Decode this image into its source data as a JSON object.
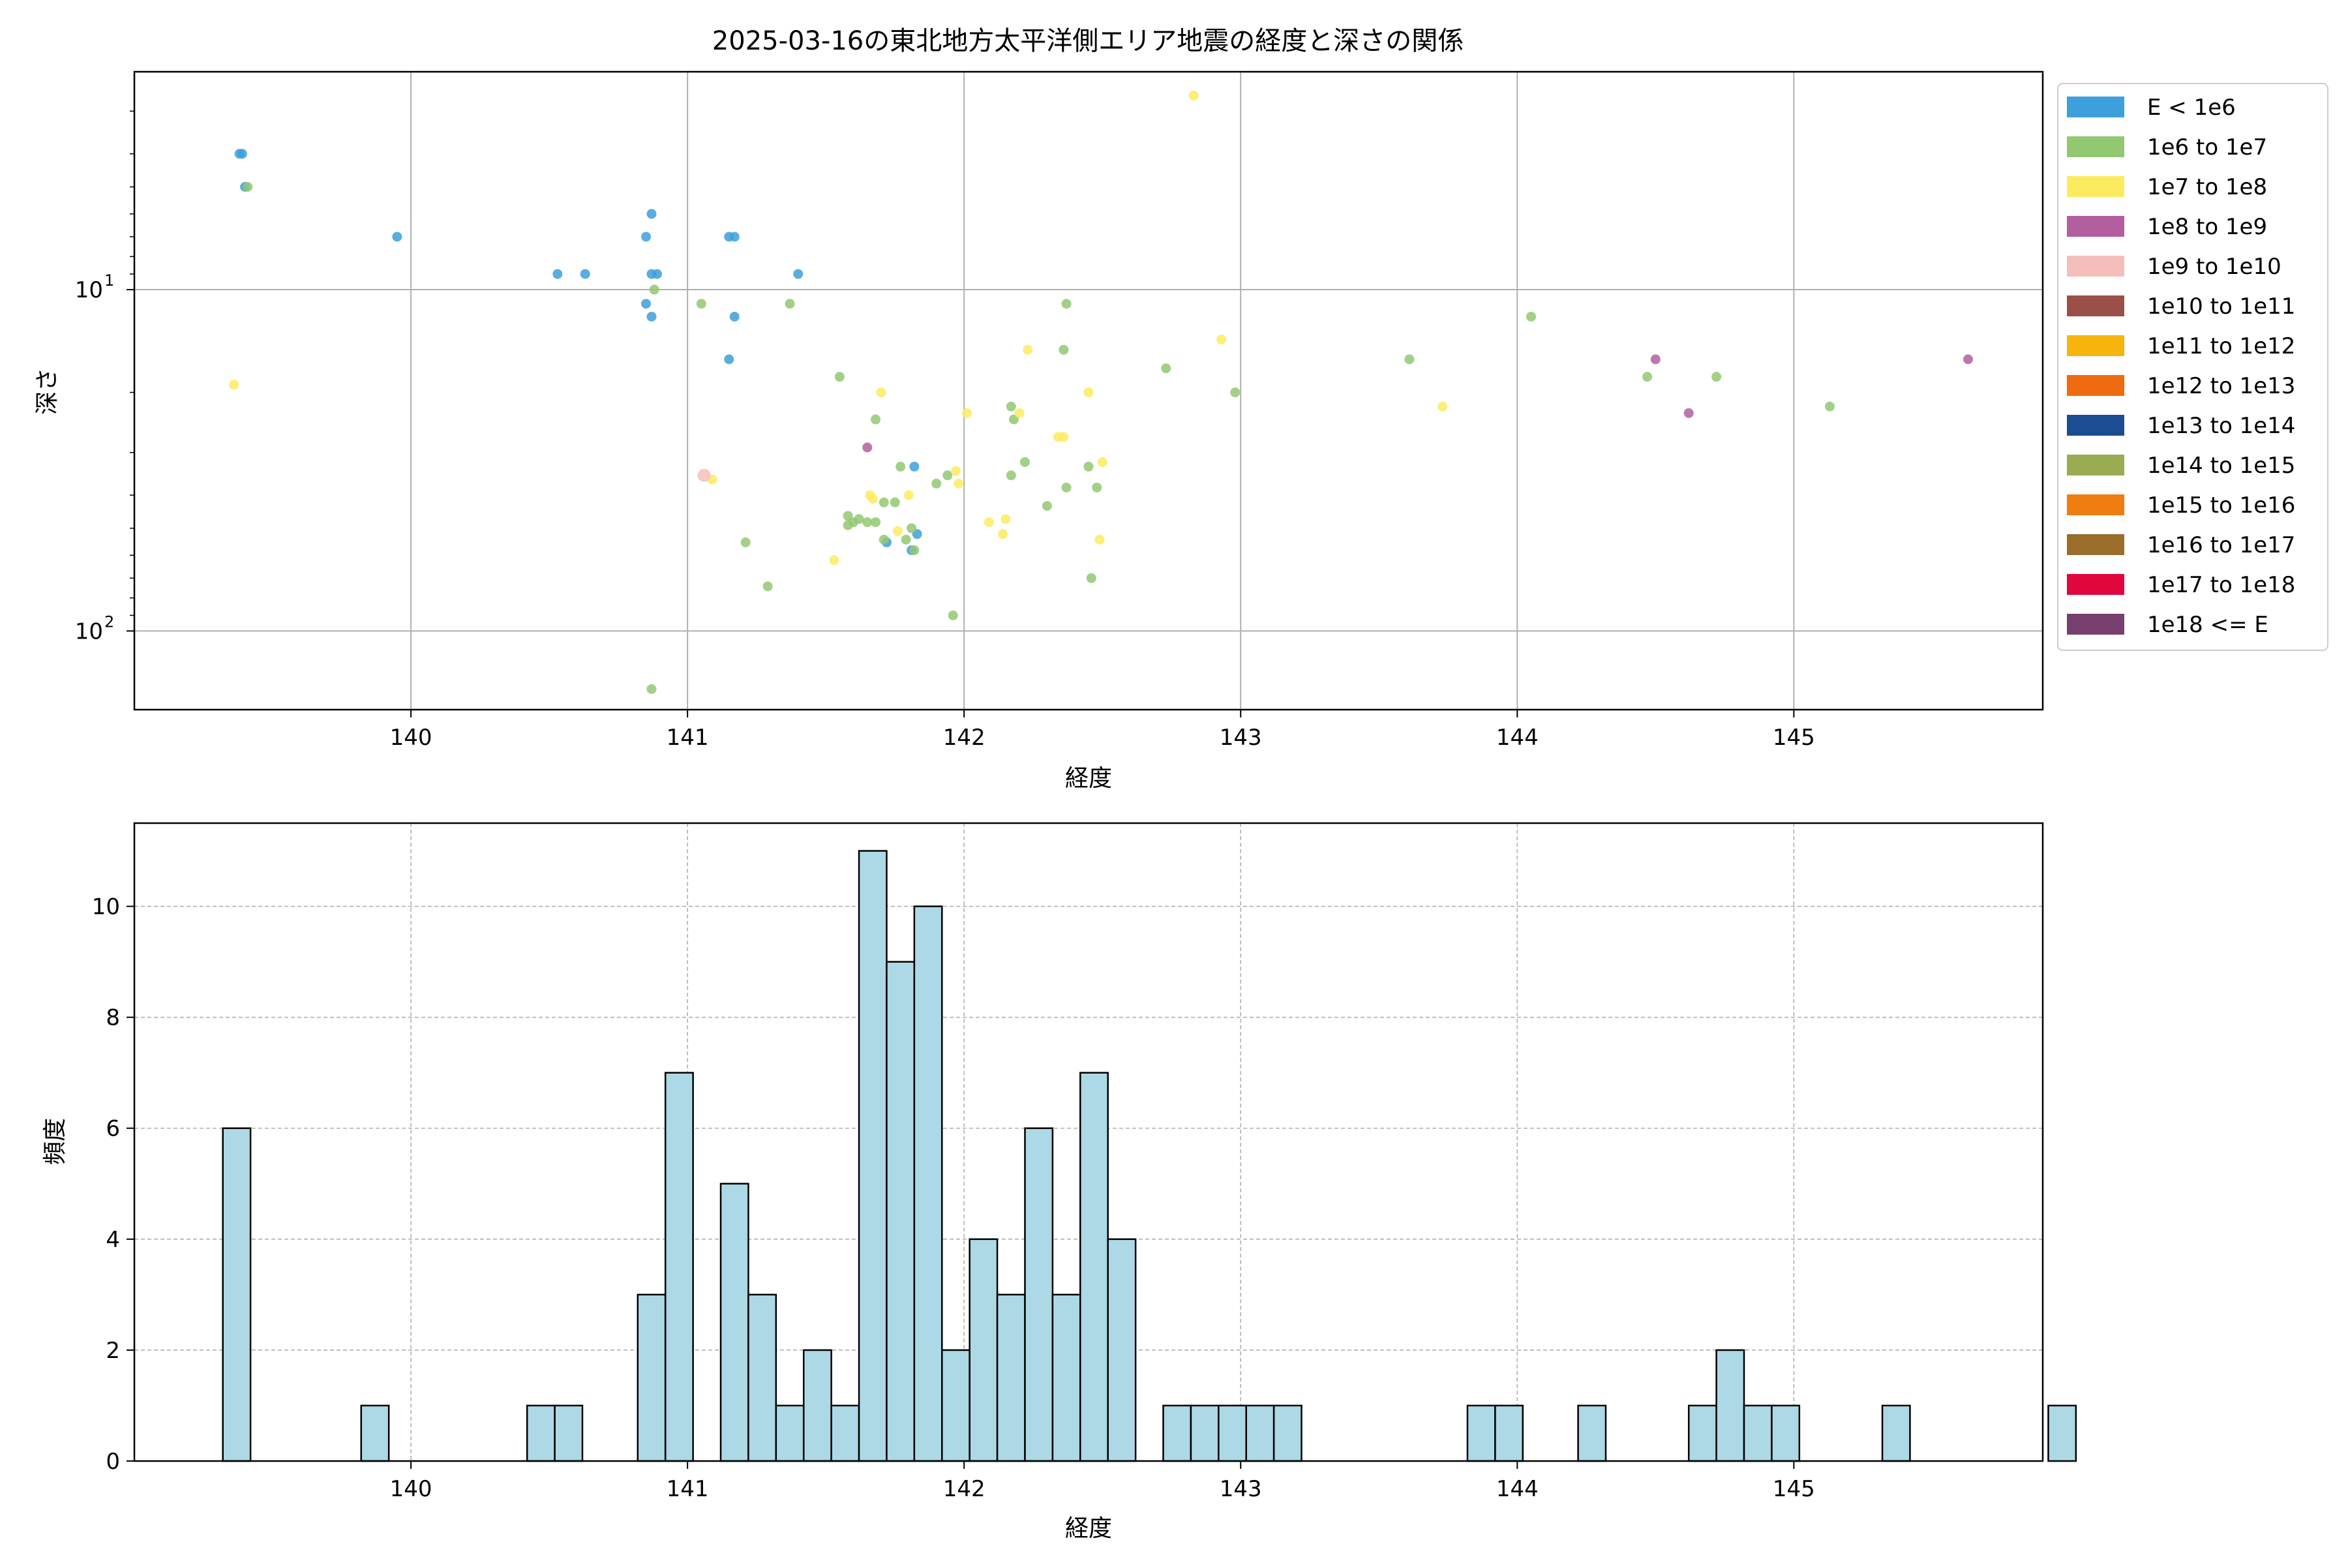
{
  "chart_data": [
    {
      "type": "scatter",
      "title": "2025-03-16の東北地方太平洋側エリア地震の経度と深さの関係",
      "xlabel": "経度",
      "ylabel": "深さ",
      "xlim": [
        139.0,
        145.9
      ],
      "ylim": [
        170,
        2.3
      ],
      "yscale": "log",
      "y_inverted": true,
      "x_ticks": [
        "140",
        "141",
        "142",
        "143",
        "144",
        "145"
      ],
      "x_tick_values": [
        140,
        141,
        142,
        143,
        144,
        145
      ],
      "y_ticks": [
        {
          "base": "10",
          "exp": "1",
          "value": 10
        },
        {
          "base": "10",
          "exp": "2",
          "value": 100
        }
      ],
      "grid": true,
      "legend_position": "outside-right",
      "legend": [
        {
          "label": "E < 1e6",
          "color": "#3d9fdb"
        },
        {
          "label": "1e6 to 1e7",
          "color": "#93c872"
        },
        {
          "label": "1e7 to 1e8",
          "color": "#fdeb5f"
        },
        {
          "label": "1e8 to 1e9",
          "color": "#b35f9f"
        },
        {
          "label": "1e9 to 1e10",
          "color": "#f4bfba"
        },
        {
          "label": "1e10 to 1e11",
          "color": "#9a5048"
        },
        {
          "label": "1e11 to 1e12",
          "color": "#f7b40f"
        },
        {
          "label": "1e12 to 1e13",
          "color": "#ee6b10"
        },
        {
          "label": "1e13 to 1e14",
          "color": "#1c4d93"
        },
        {
          "label": "1e14 to 1e15",
          "color": "#9aac51"
        },
        {
          "label": "1e15 to 1e16",
          "color": "#ef7d12"
        },
        {
          "label": "1e16 to 1e17",
          "color": "#9a6d2b"
        },
        {
          "label": "1e17 to 1e18",
          "color": "#e1063d"
        },
        {
          "label": "1e18 <= E",
          "color": "#773f6d"
        }
      ],
      "series": [
        {
          "class": 0,
          "points": [
            [
              139.38,
              4.0
            ],
            [
              139.39,
              4.0
            ],
            [
              139.4,
              5.0
            ],
            [
              139.95,
              7.0
            ],
            [
              140.53,
              9.0
            ],
            [
              140.63,
              9.0
            ],
            [
              140.85,
              7.0
            ],
            [
              140.87,
              6.0
            ],
            [
              140.87,
              9.0
            ],
            [
              140.89,
              9.0
            ],
            [
              140.85,
              11.0
            ],
            [
              140.87,
              12.0
            ],
            [
              141.15,
              7.0
            ],
            [
              141.17,
              7.0
            ],
            [
              141.4,
              9.0
            ],
            [
              141.17,
              12.0
            ],
            [
              141.15,
              16.0
            ],
            [
              141.82,
              33.0
            ],
            [
              141.83,
              52.0
            ],
            [
              141.72,
              55.0
            ],
            [
              141.81,
              58.0
            ]
          ]
        },
        {
          "class": 1,
          "points": [
            [
              139.41,
              5.0
            ],
            [
              140.88,
              10.0
            ],
            [
              141.05,
              11.0
            ],
            [
              141.37,
              11.0
            ],
            [
              142.37,
              11.0
            ],
            [
              144.05,
              12.0
            ],
            [
              141.55,
              18.0
            ],
            [
              141.68,
              24.0
            ],
            [
              142.73,
              17.0
            ],
            [
              142.98,
              20.0
            ],
            [
              143.61,
              16.0
            ],
            [
              144.47,
              18.0
            ],
            [
              144.72,
              18.0
            ],
            [
              145.13,
              22.0
            ],
            [
              142.36,
              15.0
            ],
            [
              142.17,
              22.0
            ],
            [
              142.18,
              24.0
            ],
            [
              142.22,
              32.0
            ],
            [
              142.17,
              35.0
            ],
            [
              141.94,
              35.0
            ],
            [
              141.9,
              37.0
            ],
            [
              141.77,
              33.0
            ],
            [
              142.37,
              38.0
            ],
            [
              142.45,
              33.0
            ],
            [
              142.48,
              38.0
            ],
            [
              141.71,
              42.0
            ],
            [
              141.75,
              42.0
            ],
            [
              141.58,
              46.0
            ],
            [
              141.6,
              48.0
            ],
            [
              141.62,
              47.0
            ],
            [
              141.65,
              48.0
            ],
            [
              141.68,
              48.0
            ],
            [
              141.81,
              50.0
            ],
            [
              141.79,
              54.0
            ],
            [
              141.82,
              58.0
            ],
            [
              142.3,
              43.0
            ],
            [
              141.21,
              55.0
            ],
            [
              141.29,
              74.0
            ],
            [
              142.46,
              70.0
            ],
            [
              141.96,
              90.0
            ],
            [
              140.87,
              148.0
            ],
            [
              141.58,
              49.0
            ],
            [
              141.71,
              54.0
            ]
          ]
        },
        {
          "class": 2,
          "points": [
            [
              142.83,
              2.7
            ],
            [
              139.36,
              19.0
            ],
            [
              142.93,
              14.0
            ],
            [
              142.23,
              15.0
            ],
            [
              141.7,
              20.0
            ],
            [
              142.45,
              20.0
            ],
            [
              142.01,
              23.0
            ],
            [
              142.34,
              27.0
            ],
            [
              142.36,
              27.0
            ],
            [
              142.5,
              32.0
            ],
            [
              141.97,
              34.0
            ],
            [
              141.98,
              37.0
            ],
            [
              141.66,
              40.0
            ],
            [
              141.67,
              41.0
            ],
            [
              141.8,
              40.0
            ],
            [
              141.09,
              36.0
            ],
            [
              142.09,
              48.0
            ],
            [
              142.15,
              47.0
            ],
            [
              142.14,
              52.0
            ],
            [
              141.76,
              51.0
            ],
            [
              142.49,
              54.0
            ],
            [
              141.53,
              62.0
            ],
            [
              142.2,
              23.0
            ],
            [
              143.73,
              22.0
            ]
          ]
        },
        {
          "class": 3,
          "points": [
            [
              144.5,
              16.0
            ],
            [
              145.63,
              16.0
            ],
            [
              141.65,
              29.0
            ],
            [
              144.62,
              23.0
            ]
          ]
        },
        {
          "class": 4,
          "points": [
            [
              141.06,
              35.0
            ]
          ]
        }
      ]
    },
    {
      "type": "bar",
      "title": "",
      "xlabel": "経度",
      "ylabel": "頻度",
      "xlim": [
        139.0,
        145.9
      ],
      "ylim": [
        0,
        11.5
      ],
      "x_ticks": [
        "140",
        "141",
        "142",
        "143",
        "144",
        "145"
      ],
      "x_tick_values": [
        140,
        141,
        142,
        143,
        144,
        145
      ],
      "y_ticks": [
        "0",
        "2",
        "4",
        "6",
        "8",
        "10"
      ],
      "grid": true,
      "bar_color": "#add8e6",
      "bar_edge_color": "#000000",
      "bins": {
        "start": 139.32,
        "width": 0.1,
        "counts": [
          6,
          0,
          0,
          0,
          0,
          1,
          0,
          0,
          0,
          0,
          0,
          1,
          1,
          0,
          0,
          3,
          7,
          0,
          5,
          3,
          1,
          2,
          1,
          11,
          9,
          10,
          2,
          4,
          3,
          6,
          3,
          7,
          4,
          0,
          1,
          1,
          1,
          1,
          1,
          0,
          0,
          0,
          0,
          0,
          0,
          1,
          1,
          0,
          0,
          1,
          0,
          0,
          0,
          1,
          2,
          1,
          1,
          0,
          0,
          0,
          1,
          0,
          0,
          0,
          0,
          0,
          1
        ]
      }
    }
  ]
}
